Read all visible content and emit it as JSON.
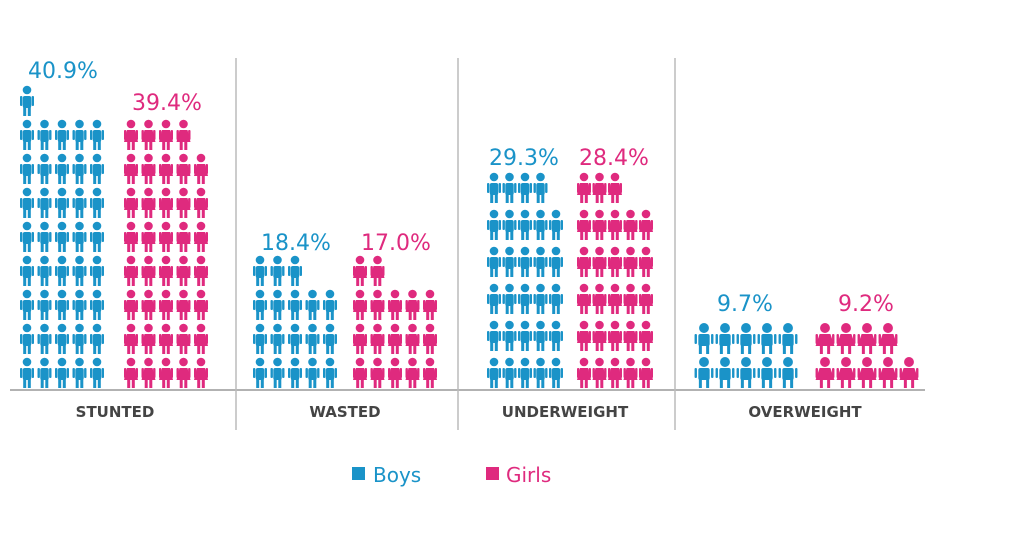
{
  "chart_data": {
    "type": "pictograph",
    "title": "",
    "xlabel": "",
    "ylabel": "",
    "categories": [
      "STUNTED",
      "WASTED",
      "UNDERWEIGHT",
      "OVERWEIGHT"
    ],
    "series": [
      {
        "name": "Boys",
        "values": [
          40.9,
          18.4,
          29.3,
          9.7
        ],
        "labels": [
          "40.9%",
          "18.4%",
          "29.3%",
          "9.7%"
        ],
        "color": "#1a93c8"
      },
      {
        "name": "Girls",
        "values": [
          39.4,
          17.0,
          28.4,
          9.2
        ],
        "labels": [
          "39.4%",
          "17.0%",
          "28.4%",
          "9.2%"
        ],
        "color": "#df2a7e"
      }
    ],
    "icon_counts": {
      "Boys": [
        41,
        18,
        29,
        10
      ],
      "Girls": [
        39,
        17,
        28,
        9
      ]
    },
    "icons_per_row": 5,
    "overweight_icon_style": "wide",
    "legend": {
      "placement": "bottom-center",
      "items": [
        "Boys",
        "Girls"
      ]
    },
    "colors": {
      "boys": "#1a93c8",
      "girls": "#df2a7e",
      "axis": "#999999",
      "divider": "#bbbbbb",
      "category_text": "#444444"
    }
  }
}
